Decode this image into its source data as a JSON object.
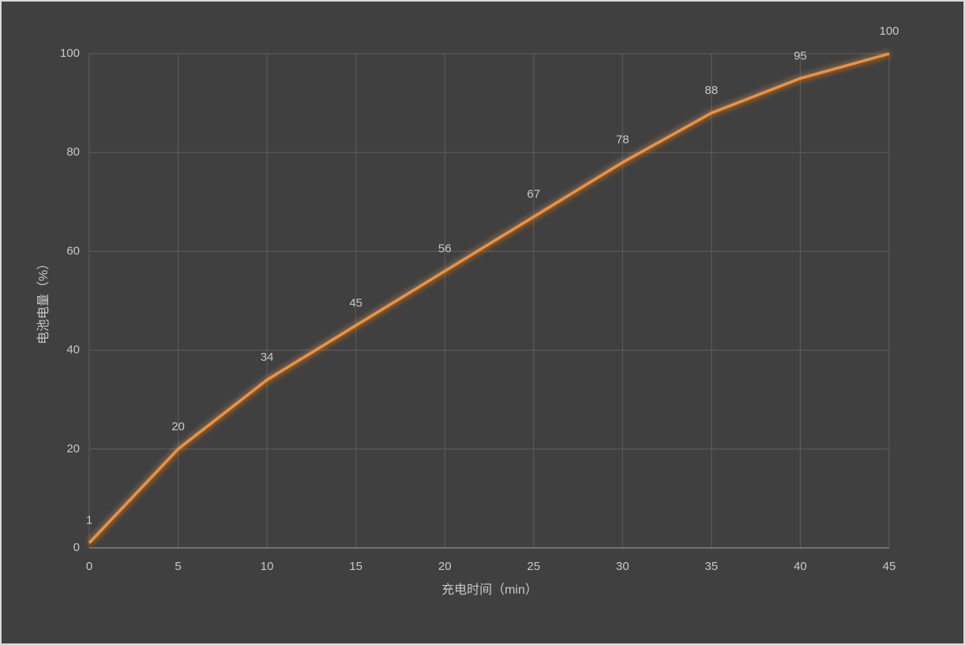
{
  "chart_data": {
    "type": "line",
    "x_label": "充电时间（min）",
    "y_label": "电池电量（%）",
    "x": [
      0,
      5,
      10,
      15,
      20,
      25,
      30,
      35,
      40,
      45
    ],
    "values": [
      1,
      20,
      34,
      45,
      56,
      67,
      78,
      88,
      95,
      100
    ],
    "color": "#f0913a",
    "xlim": [
      0,
      45
    ],
    "xticks": [
      0,
      5,
      10,
      15,
      20,
      25,
      30,
      35,
      40,
      45
    ],
    "ylim": [
      0,
      100
    ],
    "yticks": [
      0,
      20,
      40,
      60,
      80,
      100
    ],
    "grid": true
  }
}
